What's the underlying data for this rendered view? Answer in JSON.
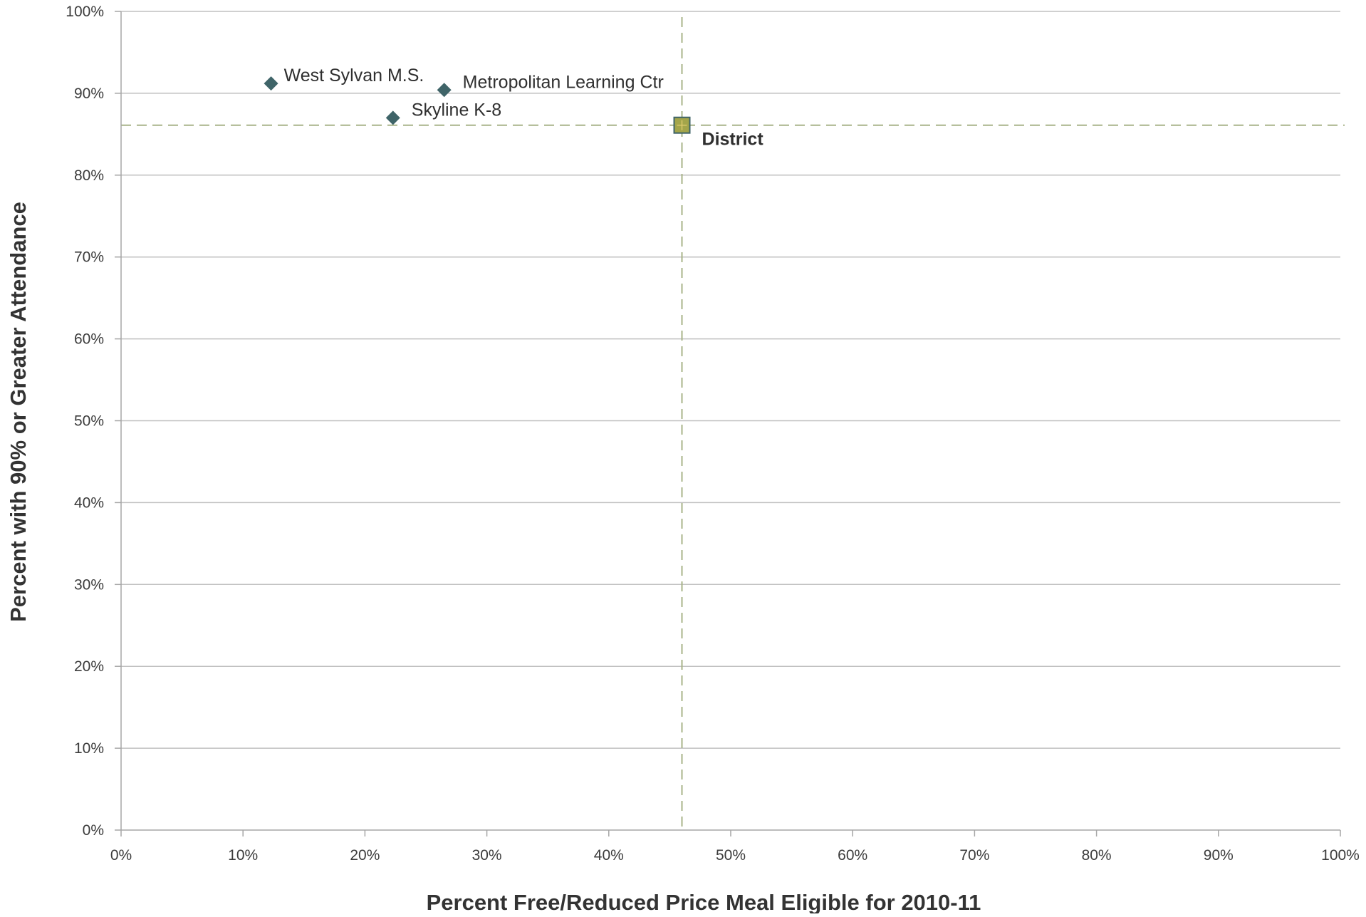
{
  "chart_data": {
    "type": "scatter",
    "xlabel": "Percent Free/Reduced Price Meal Eligible for 2010-11",
    "ylabel": "Percent with 90% or Greater Attendance",
    "xlim": [
      0,
      100
    ],
    "ylim": [
      0,
      100
    ],
    "x_ticks": [
      "0%",
      "10%",
      "20%",
      "30%",
      "40%",
      "50%",
      "60%",
      "70%",
      "80%",
      "90%",
      "100%"
    ],
    "y_ticks": [
      "0%",
      "10%",
      "20%",
      "30%",
      "40%",
      "50%",
      "60%",
      "70%",
      "80%",
      "90%",
      "100%"
    ],
    "grid": "horizontal",
    "points": [
      {
        "label": "West Sylvan M.S.",
        "x": 12.3,
        "y": 91.2,
        "marker": "diamond",
        "color": "#3f6468"
      },
      {
        "label": "Metropolitan Learning Ctr",
        "x": 26.5,
        "y": 90.4,
        "marker": "diamond",
        "color": "#3f6468"
      },
      {
        "label": "Skyline K-8",
        "x": 22.3,
        "y": 87.0,
        "marker": "diamond",
        "color": "#3f6468"
      },
      {
        "label": "District",
        "x": 46.0,
        "y": 86.1,
        "marker": "square",
        "color": "#a3a54a",
        "bold": true
      }
    ],
    "reference_lines": {
      "x": 46.0,
      "y": 86.1,
      "style": "dashed",
      "color": "#a8b489"
    }
  },
  "colors": {
    "gridline": "#c0c0c0",
    "axis": "#a6a6a6",
    "school_marker": "#3f6468",
    "district_fill": "#a3a54a",
    "district_border": "#3f6468"
  }
}
